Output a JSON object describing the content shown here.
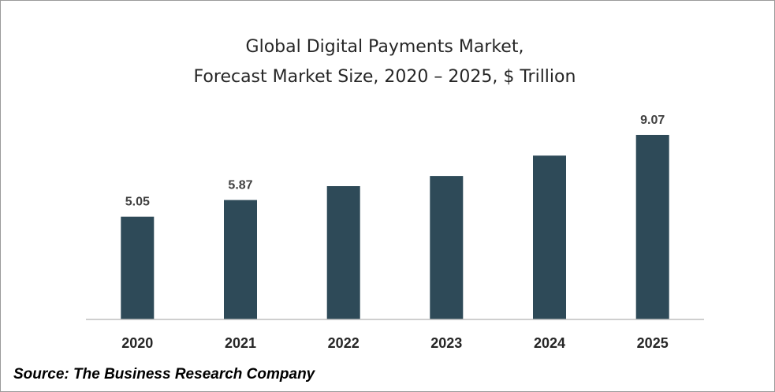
{
  "chart_data": {
    "type": "bar",
    "title": "Global Digital Payments Market,",
    "subtitle": "Forecast Market Size, 2020 – 2025, $ Trillion",
    "categories": [
      "2020",
      "2021",
      "2022",
      "2023",
      "2024",
      "2025"
    ],
    "values": [
      5.05,
      5.87,
      6.55,
      7.05,
      8.05,
      9.07
    ],
    "data_labels": [
      "5.05",
      "5.87",
      "",
      "",
      "",
      "9.07"
    ],
    "ylim": [
      0,
      10
    ],
    "grid": false,
    "legend": "none",
    "bar_color": "#2e4a58"
  },
  "source": "Source: The Business Research Company"
}
